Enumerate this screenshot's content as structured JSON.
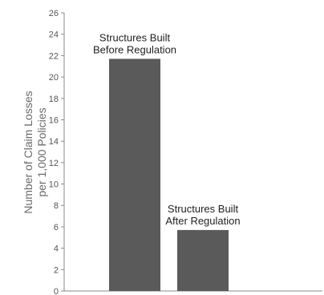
{
  "chart_data": {
    "type": "bar",
    "categories": [
      "Structures Built Before Regulation",
      "Structures Built After Regulation"
    ],
    "bar_labels": [
      [
        "Structures Built",
        "Before Regulation"
      ],
      [
        "Structures Built",
        "After Regulation"
      ]
    ],
    "values": [
      21.7,
      5.7
    ],
    "title": "",
    "xlabel": "",
    "ylabel_lines": [
      "Number of Claim Losses",
      "per 1,000 Policies"
    ],
    "ylim": [
      0,
      26
    ],
    "yticks": [
      "0",
      "2",
      "4",
      "6",
      "8",
      "10",
      "12",
      "14",
      "16",
      "18",
      "20",
      "22",
      "24",
      "26"
    ],
    "grid": false,
    "legend": "none",
    "colors": {
      "bar": "#5a5a5a",
      "axis": "#8a8a8a",
      "text": "#222222",
      "ylabel": "#6a6a6a"
    }
  }
}
